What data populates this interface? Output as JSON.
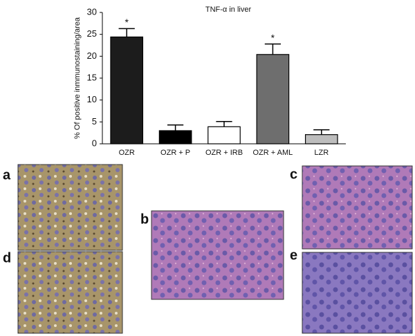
{
  "chart_data": {
    "type": "bar",
    "title": "TNF-α in liver",
    "ylabel": "% Of positive inmmunostaining/area",
    "categories": [
      "OZR",
      "OZR + P",
      "OZR + IRB",
      "OZR + AML",
      "LZR"
    ],
    "values": [
      24.4,
      3.0,
      3.9,
      20.4,
      2.1
    ],
    "errors": [
      1.9,
      1.3,
      1.2,
      2.4,
      1.1
    ],
    "significance": [
      "*",
      null,
      null,
      "*",
      null
    ],
    "colors": [
      "#1c1c1c",
      "#000000",
      "#ffffff",
      "#6e6e6e",
      "#bdbdbd"
    ],
    "ylim": [
      0,
      30
    ],
    "yticks": [
      0,
      5,
      10,
      15,
      20,
      25,
      30
    ]
  },
  "panels": [
    {
      "label": "a"
    },
    {
      "label": "b"
    },
    {
      "label": "c"
    },
    {
      "label": "d"
    },
    {
      "label": "e"
    }
  ]
}
